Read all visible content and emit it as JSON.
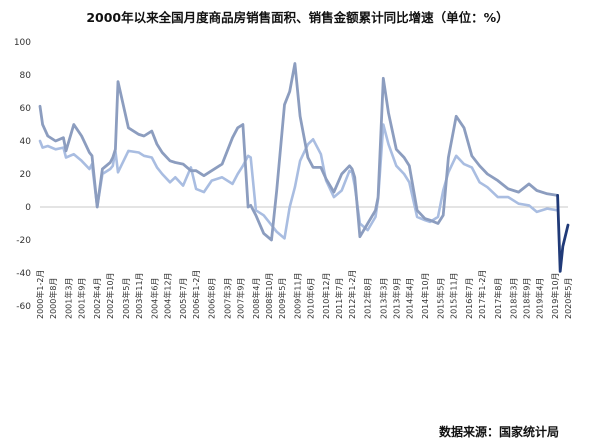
{
  "chart_data": {
    "type": "line",
    "title": "2000年以来全国月度商品房销售面积、销售金额累计同比增速（单位：%）",
    "source": "数据来源：国家统计局",
    "xlabel": "",
    "ylabel": "",
    "ylim": [
      -60,
      100
    ],
    "y_ticks": [
      -60,
      -40,
      -20,
      0,
      20,
      40,
      60,
      80,
      100
    ],
    "grid": false,
    "legend": "none",
    "colors": {
      "area_series": "#a9bde1",
      "value_series": "#8c9dbf",
      "recent_segment": "#203a78",
      "axis": "#c8c8c8",
      "title_text": "#111111"
    },
    "x_tick_labels": [
      "2000年1-2月",
      "2000年8月",
      "2001年3月",
      "2001年9月",
      "2002年4月",
      "2002年10月",
      "2003年5月",
      "2003年11月",
      "2004年6月",
      "2004年12月",
      "2005年7月",
      "2006年1-2月",
      "2006年8月",
      "2007年3月",
      "2007年9月",
      "2008年4月",
      "2008年10月",
      "2009年5月",
      "2009年11月",
      "2010年6月",
      "2010年12月",
      "2011年7月",
      "2012年1-2月",
      "2012年8月",
      "2013年3月",
      "2013年9月",
      "2014年4月",
      "2014年10月",
      "2015年5月",
      "2015年11月",
      "2016年7月",
      "2017年1-2月",
      "2017年8月",
      "2018年3月",
      "2018年9月",
      "2019年4月",
      "2019年10月",
      "2020年5月"
    ],
    "x_positions": [
      0.0,
      0.5,
      1.1,
      1.6,
      2.2,
      2.7,
      3.3,
      3.8,
      4.4,
      4.9,
      5.5,
      6.0,
      6.6,
      7.2,
      7.7,
      8.3,
      8.8,
      9.3,
      9.9,
      10.4,
      11.0,
      11.5,
      12.0,
      12.6,
      13.2,
      13.7,
      14.2,
      14.8,
      15.4,
      15.9,
      16.5,
      17.0,
      17.6,
      18.2,
      18.7,
      19.2,
      19.8,
      20.3
    ],
    "series": [
      {
        "key": "area",
        "x": [
          0,
          0.1,
          0.3,
          0.6,
          0.9,
          1.0,
          1.3,
          1.6,
          1.9,
          2.0,
          2.2,
          2.4,
          2.7,
          2.8,
          2.9,
          3.0,
          3.4,
          3.8,
          4.0,
          4.3,
          4.5,
          4.7,
          5.0,
          5.2,
          5.5,
          5.8,
          6.0,
          6.3,
          6.6,
          7.0,
          7.4,
          7.6,
          7.8,
          8.0,
          8.1,
          8.3,
          8.6,
          8.9,
          9.1,
          9.4,
          9.6,
          9.8,
          10.0,
          10.3,
          10.5,
          10.8,
          11.0,
          11.3,
          11.6,
          11.9,
          12.0,
          12.1,
          12.3,
          12.6,
          12.9,
          13.0,
          13.2,
          13.4,
          13.7,
          14.0,
          14.2,
          14.5,
          14.8,
          15.0,
          15.3,
          15.5,
          15.7,
          16.0,
          16.3,
          16.6,
          16.9,
          17.2,
          17.6,
          18.0,
          18.4,
          18.8,
          19.1,
          19.5,
          19.9
        ],
        "y": [
          40,
          36,
          37,
          35,
          36,
          30,
          32,
          28,
          23,
          26,
          0,
          20,
          23,
          25,
          34,
          21,
          34,
          33,
          31,
          30,
          24,
          20,
          15,
          18,
          13,
          24,
          11,
          9,
          16,
          18,
          14,
          20,
          25,
          31,
          30,
          -2,
          -5,
          -11,
          -15,
          -19,
          0,
          12,
          28,
          38,
          41,
          32,
          16,
          6,
          10,
          22,
          21,
          13,
          -10,
          -14,
          -6,
          5,
          50,
          38,
          25,
          20,
          15,
          -6,
          -8,
          -9,
          -6,
          10,
          21,
          31,
          26,
          24,
          15,
          12,
          6,
          6,
          2,
          1,
          -3,
          -1,
          -2
        ]
      },
      {
        "key": "value",
        "x": [
          0,
          0.1,
          0.3,
          0.6,
          0.9,
          1.0,
          1.3,
          1.6,
          1.9,
          2.0,
          2.2,
          2.4,
          2.7,
          2.8,
          2.9,
          3.0,
          3.4,
          3.8,
          4.0,
          4.3,
          4.5,
          4.7,
          5.0,
          5.2,
          5.5,
          5.8,
          6.0,
          6.3,
          6.6,
          7.0,
          7.4,
          7.6,
          7.8,
          8.0,
          8.1,
          8.3,
          8.6,
          8.9,
          9.1,
          9.4,
          9.6,
          9.8,
          10.0,
          10.3,
          10.5,
          10.8,
          11.0,
          11.3,
          11.6,
          11.9,
          12.0,
          12.1,
          12.3,
          12.6,
          12.9,
          13.0,
          13.2,
          13.4,
          13.7,
          14.0,
          14.2,
          14.5,
          14.8,
          15.0,
          15.3,
          15.5,
          15.7,
          16.0,
          16.3,
          16.6,
          16.9,
          17.2,
          17.6,
          18.0,
          18.4,
          18.8,
          19.1,
          19.5,
          19.9
        ],
        "y": [
          61,
          50,
          43,
          40,
          42,
          34,
          50,
          43,
          33,
          31,
          0,
          23,
          27,
          30,
          35,
          76,
          48,
          44,
          43,
          46,
          38,
          33,
          28,
          27,
          26,
          22,
          22,
          19,
          22,
          26,
          42,
          48,
          50,
          0,
          1,
          -5,
          -16,
          -20,
          10,
          62,
          70,
          87,
          55,
          30,
          24,
          24,
          17,
          9,
          20,
          25,
          23,
          18,
          -18,
          -10,
          -2,
          6,
          78,
          57,
          35,
          30,
          25,
          -2,
          -7,
          -8,
          -10,
          -5,
          30,
          55,
          48,
          31,
          25,
          20,
          16,
          11,
          9,
          14,
          10,
          8,
          7
        ]
      },
      {
        "key": "recent",
        "x": [
          19.9,
          20.0,
          20.1,
          20.3
        ],
        "y": [
          7,
          -39,
          -24,
          -11
        ]
      }
    ]
  }
}
